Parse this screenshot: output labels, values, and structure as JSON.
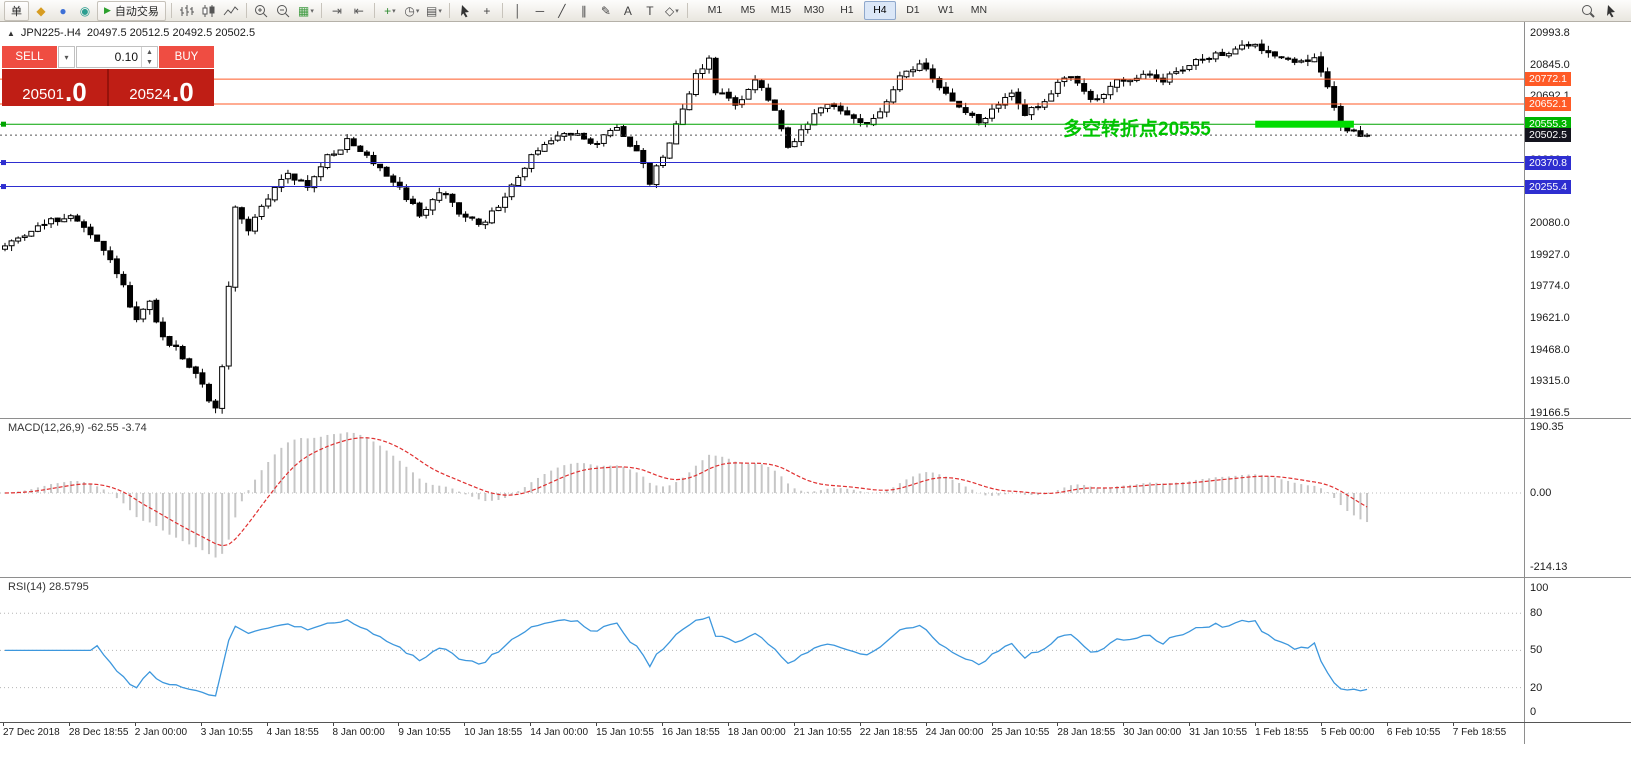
{
  "toolbar": {
    "new_order_label": "单",
    "autotrade_label": "自动交易",
    "play_glyph": "▶",
    "app_icons": [
      {
        "name": "favorites-icon",
        "glyph": "◆",
        "color": "#d79c20"
      },
      {
        "name": "accounts-icon",
        "glyph": "●",
        "color": "#3c6fd6"
      },
      {
        "name": "community-icon",
        "glyph": "◉",
        "color": "#2a9d8f"
      }
    ],
    "tools": [
      {
        "sep": true
      },
      {
        "name": "bar-chart-icon",
        "svg": "bars"
      },
      {
        "name": "candlestick-chart-icon",
        "svg": "candles"
      },
      {
        "name": "line-chart-icon",
        "svg": "linechart"
      },
      {
        "sep": true
      },
      {
        "name": "zoom-in-icon",
        "svg": "zoomin"
      },
      {
        "name": "zoom-out-icon",
        "svg": "zoomout"
      },
      {
        "name": "grid-icon",
        "glyph": "▦",
        "color": "#3f9b41",
        "dropdown": true
      },
      {
        "sep": true
      },
      {
        "name": "autoscroll-icon",
        "glyph": "⇥",
        "color": "#555555"
      },
      {
        "name": "chart-shift-icon",
        "glyph": "⇤",
        "color": "#555555"
      },
      {
        "sep": true
      },
      {
        "name": "indicators-icon",
        "glyph": "+",
        "color": "#2e8b2e",
        "dropdown": true
      },
      {
        "name": "periods-icon",
        "glyph": "◷",
        "color": "#555555",
        "dropdown": true
      },
      {
        "name": "templates-icon",
        "glyph": "▤",
        "color": "#555555",
        "dropdown": true
      },
      {
        "sep": true
      },
      {
        "name": "cursor-icon",
        "svg": "cursor"
      },
      {
        "name": "crosshair-icon",
        "glyph": "+",
        "color": "#444444"
      },
      {
        "sep": true
      },
      {
        "name": "vertical-line-icon",
        "glyph": "│"
      },
      {
        "name": "horizontal-line-icon",
        "glyph": "─"
      },
      {
        "name": "trendline-icon",
        "glyph": "╱"
      },
      {
        "name": "channel-icon",
        "glyph": "∥"
      },
      {
        "name": "pencil-icon",
        "glyph": "✎"
      },
      {
        "name": "text-icon",
        "glyph": "A"
      },
      {
        "name": "label-icon",
        "glyph": "T"
      },
      {
        "name": "shapes-icon",
        "glyph": "◇",
        "dropdown": true
      },
      {
        "sep": true
      }
    ],
    "timeframes": [
      "M1",
      "M5",
      "M15",
      "M30",
      "H1",
      "H4",
      "D1",
      "W1",
      "MN"
    ],
    "active_timeframe": "H4",
    "right_tools": [
      {
        "name": "search-icon",
        "svg": "magnifier"
      },
      {
        "name": "cursor-tool-icon",
        "svg": "cursor"
      }
    ]
  },
  "symbol": {
    "icon": "▲",
    "name": "JPN225-.H4",
    "ohlc": "20497.5 20512.5 20492.5 20502.5"
  },
  "trade_panel": {
    "sell_label": "SELL",
    "buy_label": "BUY",
    "volume": "0.10",
    "sell_price_main": "20501",
    "sell_price_frac": ".0",
    "buy_price_main": "20524",
    "buy_price_frac": ".0"
  },
  "annotation": {
    "text": "多空转折点20555",
    "color": "#00c400"
  },
  "hlines": [
    {
      "price": "20772.1",
      "value": 20772.1,
      "color": "#ff5a26",
      "badge": "#ff5a26"
    },
    {
      "price": "20652.1",
      "value": 20652.1,
      "color": "#ff5a26",
      "badge": "#ff5a26"
    },
    {
      "price": "20555.3",
      "value": 20555.3,
      "color": "#00a400",
      "badge": "#00b400",
      "handle": true,
      "thick_segment": {
        "from_index": 190,
        "to_index": 205
      }
    },
    {
      "price": "20502.5",
      "value": 20502.5,
      "color": "#555555",
      "badge": "#14141e",
      "current": true
    },
    {
      "price": "20370.8",
      "value": 20370.8,
      "color": "#2e2ed0",
      "badge": "#2e2ed0",
      "handle": true
    },
    {
      "price": "20255.4",
      "value": 20255.4,
      "color": "#2e2ed0",
      "badge": "#2e2ed0",
      "handle": true
    }
  ],
  "price_scale": {
    "max": 20993.8,
    "min": 19166.5,
    "labels": [
      "20993.8",
      "20845.0",
      "20692.1",
      "20539.3",
      "20386.4",
      "20233.5",
      "20080.0",
      "19927.0",
      "19774.0",
      "19621.0",
      "19468.0",
      "19315.0",
      "19166.5"
    ]
  },
  "macd": {
    "label": "MACD(12,26,9) -62.55 -3.74",
    "params": [
      12,
      26,
      9
    ],
    "value": -62.55,
    "signal": -3.74,
    "scale": [
      {
        "label": "190.35",
        "value": 190.35
      },
      {
        "label": "0.00",
        "value": 0
      },
      {
        "label": "-214.13",
        "value": -214.13
      }
    ]
  },
  "rsi": {
    "label": "RSI(14) 28.5795",
    "period": 14,
    "value": 28.5795,
    "levels": [
      80,
      50,
      20
    ],
    "scale": [
      {
        "label": "100",
        "value": 100
      },
      {
        "label": "80",
        "value": 80
      },
      {
        "label": "50",
        "value": 50
      },
      {
        "label": "20",
        "value": 20
      },
      {
        "label": "0",
        "value": 0
      }
    ]
  },
  "time_axis": [
    "27 Dec 2018",
    "28 Dec 18:55",
    "2 Jan 00:00",
    "3 Jan 10:55",
    "4 Jan 18:55",
    "8 Jan 00:00",
    "9 Jan 10:55",
    "10 Jan 18:55",
    "14 Jan 00:00",
    "15 Jan 10:55",
    "16 Jan 18:55",
    "18 Jan 00:00",
    "21 Jan 10:55",
    "22 Jan 18:55",
    "24 Jan 00:00",
    "25 Jan 10:55",
    "28 Jan 18:55",
    "30 Jan 00:00",
    "31 Jan 10:55",
    "1 Feb 18:55",
    "5 Feb 00:00",
    "6 Feb 10:55",
    "7 Feb 18:55"
  ],
  "chart_data": {
    "type": "candlestick",
    "symbol": "JPN225-",
    "timeframe": "H4",
    "last_ohlc": [
      20497.5,
      20512.5,
      20492.5,
      20502.5
    ],
    "candle_count": 208,
    "price_anchors": [
      [
        0,
        19950
      ],
      [
        5,
        20050
      ],
      [
        11,
        20120
      ],
      [
        15,
        19980
      ],
      [
        18,
        19850
      ],
      [
        21,
        19600
      ],
      [
        23,
        19700
      ],
      [
        25,
        19520
      ],
      [
        27,
        19480
      ],
      [
        30,
        19350
      ],
      [
        33,
        19180
      ],
      [
        34,
        19400
      ],
      [
        36,
        20150
      ],
      [
        38,
        20050
      ],
      [
        41,
        20200
      ],
      [
        44,
        20330
      ],
      [
        47,
        20250
      ],
      [
        50,
        20400
      ],
      [
        53,
        20470
      ],
      [
        55,
        20420
      ],
      [
        58,
        20350
      ],
      [
        61,
        20250
      ],
      [
        64,
        20120
      ],
      [
        67,
        20230
      ],
      [
        70,
        20140
      ],
      [
        73,
        20060
      ],
      [
        76,
        20160
      ],
      [
        79,
        20300
      ],
      [
        82,
        20440
      ],
      [
        85,
        20490
      ],
      [
        88,
        20520
      ],
      [
        91,
        20460
      ],
      [
        94,
        20550
      ],
      [
        97,
        20420
      ],
      [
        99,
        20280
      ],
      [
        101,
        20400
      ],
      [
        103,
        20560
      ],
      [
        106,
        20790
      ],
      [
        108,
        20870
      ],
      [
        109,
        20720
      ],
      [
        112,
        20650
      ],
      [
        115,
        20770
      ],
      [
        118,
        20620
      ],
      [
        120,
        20430
      ],
      [
        123,
        20560
      ],
      [
        126,
        20650
      ],
      [
        129,
        20600
      ],
      [
        132,
        20560
      ],
      [
        135,
        20650
      ],
      [
        137,
        20790
      ],
      [
        140,
        20850
      ],
      [
        142,
        20760
      ],
      [
        144,
        20700
      ],
      [
        147,
        20610
      ],
      [
        149,
        20560
      ],
      [
        152,
        20650
      ],
      [
        154,
        20700
      ],
      [
        156,
        20610
      ],
      [
        159,
        20650
      ],
      [
        161,
        20750
      ],
      [
        163,
        20800
      ],
      [
        166,
        20660
      ],
      [
        168,
        20700
      ],
      [
        170,
        20780
      ],
      [
        172,
        20750
      ],
      [
        175,
        20800
      ],
      [
        177,
        20760
      ],
      [
        179,
        20820
      ],
      [
        182,
        20850
      ],
      [
        184,
        20880
      ],
      [
        186,
        20900
      ],
      [
        188,
        20915
      ],
      [
        191,
        20935
      ],
      [
        193,
        20905
      ],
      [
        195,
        20880
      ],
      [
        198,
        20855
      ],
      [
        200,
        20870
      ],
      [
        201,
        20800
      ],
      [
        203,
        20650
      ],
      [
        204,
        20540
      ],
      [
        206,
        20515
      ],
      [
        207,
        20502.5
      ]
    ],
    "indicators": [
      {
        "type": "MACD",
        "params": [
          12,
          26,
          9
        ],
        "current": [
          -62.55,
          -3.74
        ],
        "range": [
          190.35,
          -214.13
        ]
      },
      {
        "type": "RSI",
        "params": [
          14
        ],
        "current": 28.5795
      }
    ]
  }
}
